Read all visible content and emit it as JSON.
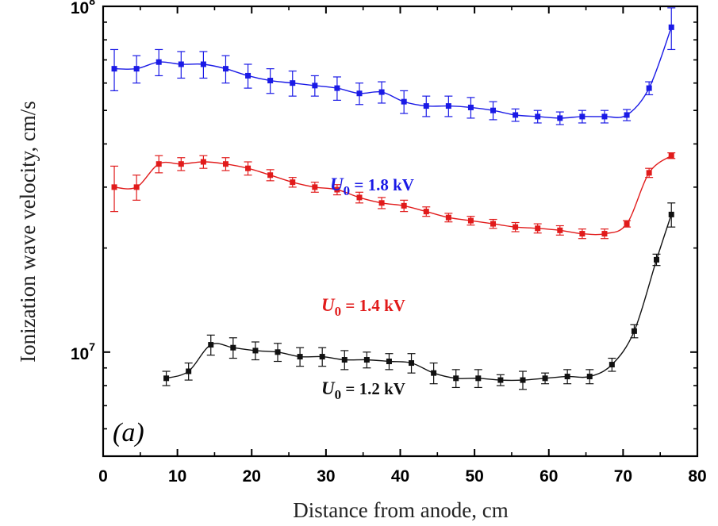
{
  "chart_data": {
    "type": "line",
    "panel_label": "(a)",
    "xlabel": "Distance from anode, cm",
    "ylabel": "Ionization wave velocity, cm/s",
    "xlim": [
      0,
      80
    ],
    "ylim": [
      5000000,
      100000000
    ],
    "yscale": "log",
    "x_ticks": [
      "0",
      "10",
      "20",
      "30",
      "40",
      "50",
      "60",
      "70",
      "80"
    ],
    "y_ticks": [
      {
        "value": 10000000,
        "base": "10",
        "exp": "7"
      },
      {
        "value": 100000000,
        "base": "10",
        "exp": "8"
      }
    ],
    "grid": false,
    "series": [
      {
        "label": {
          "sym": "U",
          "sub": "0",
          "rest": " = 1.8 kV"
        },
        "color": "#1a1ae6",
        "x": [
          1.5,
          4.5,
          7.5,
          10.5,
          13.5,
          16.5,
          19.5,
          22.5,
          25.5,
          28.5,
          31.5,
          34.5,
          37.5,
          40.5,
          43.5,
          46.5,
          49.5,
          52.5,
          55.5,
          58.5,
          61.5,
          64.5,
          67.5,
          70.5,
          73.5,
          76.5
        ],
        "y": [
          66000000,
          66000000,
          69000000,
          68000000,
          68000000,
          66000000,
          63000000,
          61000000,
          60000000,
          59000000,
          58000000,
          56000000,
          56500000,
          53000000,
          51500000,
          51500000,
          51000000,
          50000000,
          48500000,
          48000000,
          47500000,
          48000000,
          48000000,
          48500000,
          58000000,
          87000000
        ],
        "err": [
          9000000,
          6000000,
          6000000,
          6000000,
          6000000,
          6000000,
          5000000,
          5000000,
          5000000,
          4000000,
          4500000,
          4000000,
          4000000,
          4000000,
          3500000,
          3500000,
          3500000,
          3000000,
          2000000,
          2000000,
          2000000,
          2000000,
          2000000,
          1800000,
          2500000,
          12000000
        ]
      },
      {
        "label": {
          "sym": "U",
          "sub": "0",
          "rest": " = 1.4 kV"
        },
        "color": "#e11b1b",
        "x": [
          1.5,
          4.5,
          7.5,
          10.5,
          13.5,
          16.5,
          19.5,
          22.5,
          25.5,
          28.5,
          31.5,
          34.5,
          37.5,
          40.5,
          43.5,
          46.5,
          49.5,
          52.5,
          55.5,
          58.5,
          61.5,
          64.5,
          67.5,
          70.5,
          73.5,
          76.5
        ],
        "y": [
          30000000,
          30000000,
          35000000,
          35000000,
          35500000,
          35000000,
          34000000,
          32500000,
          31000000,
          30000000,
          29500000,
          28000000,
          27000000,
          26500000,
          25500000,
          24500000,
          24000000,
          23500000,
          23000000,
          22800000,
          22500000,
          22000000,
          22000000,
          23500000,
          33000000,
          37000000
        ],
        "err": [
          4500000,
          2500000,
          2000000,
          1500000,
          1500000,
          1500000,
          1500000,
          1200000,
          1000000,
          1000000,
          1000000,
          1000000,
          1000000,
          1000000,
          800000,
          700000,
          700000,
          700000,
          700000,
          700000,
          700000,
          700000,
          700000,
          500000,
          1000000,
          700000
        ]
      },
      {
        "label": {
          "sym": "U",
          "sub": "0",
          "rest": " = 1.2 kV"
        },
        "color": "#111111",
        "x": [
          8.5,
          11.5,
          14.5,
          17.5,
          20.5,
          23.5,
          26.5,
          29.5,
          32.5,
          35.5,
          38.5,
          41.5,
          44.5,
          47.5,
          50.5,
          53.5,
          56.5,
          59.5,
          62.5,
          65.5,
          68.5,
          71.5,
          74.5,
          76.5
        ],
        "y": [
          8400000,
          8800000,
          10500000,
          10300000,
          10100000,
          10000000,
          9700000,
          9700000,
          9500000,
          9500000,
          9400000,
          9300000,
          8700000,
          8400000,
          8400000,
          8300000,
          8300000,
          8400000,
          8500000,
          8500000,
          9200000,
          11500000,
          18500000,
          25000000
        ],
        "err": [
          400000,
          500000,
          700000,
          700000,
          600000,
          600000,
          600000,
          600000,
          600000,
          500000,
          500000,
          600000,
          600000,
          500000,
          500000,
          300000,
          500000,
          300000,
          400000,
          400000,
          400000,
          500000,
          700000,
          2000000
        ]
      }
    ]
  }
}
